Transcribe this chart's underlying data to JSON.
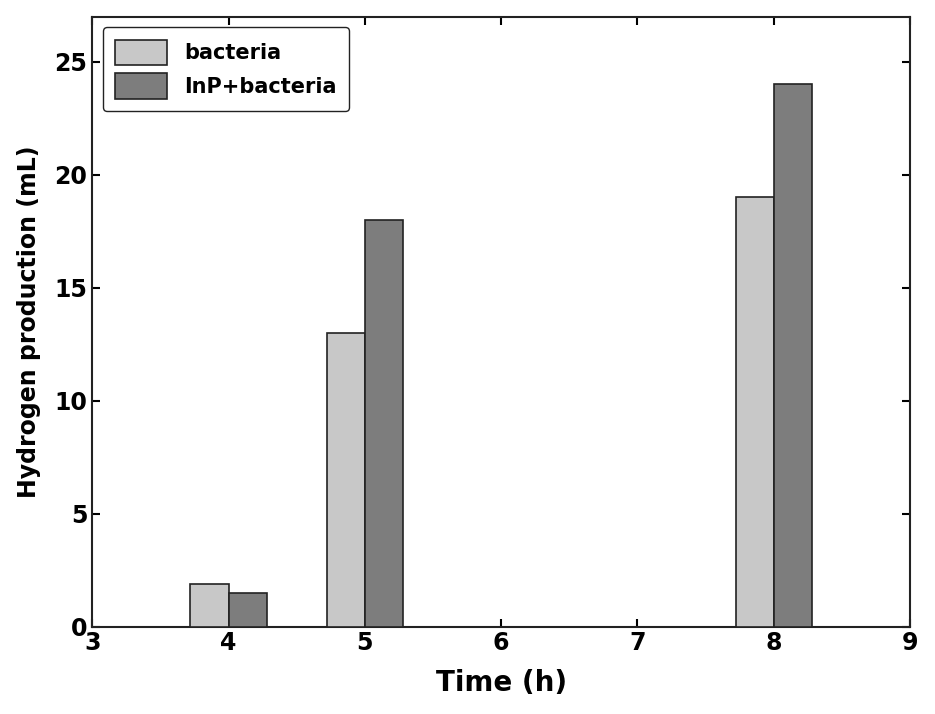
{
  "x_positions": [
    4,
    5,
    8
  ],
  "bacteria_values": [
    1.9,
    13.0,
    19.0
  ],
  "inp_bacteria_values": [
    1.5,
    18.0,
    24.0
  ],
  "bacteria_color": "#c8c8c8",
  "inp_bacteria_color": "#7d7d7d",
  "bar_width": 0.28,
  "xlabel": "Time (h)",
  "ylabel": "Hydrogen production (mL)",
  "xlim": [
    3,
    9
  ],
  "ylim": [
    0,
    27
  ],
  "xticks": [
    3,
    4,
    5,
    6,
    7,
    8,
    9
  ],
  "yticks": [
    0,
    5,
    10,
    15,
    20,
    25
  ],
  "legend_labels": [
    "bacteria",
    "InP+bacteria"
  ],
  "xlabel_fontsize": 20,
  "ylabel_fontsize": 17,
  "tick_fontsize": 17,
  "legend_fontsize": 15,
  "bar_edge_color": "#222222",
  "bar_edge_linewidth": 1.2,
  "spine_linewidth": 1.5
}
